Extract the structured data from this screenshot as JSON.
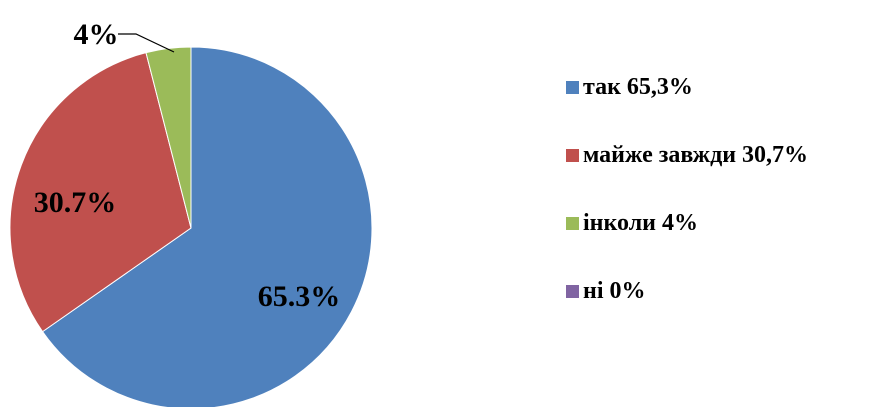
{
  "chart_data": {
    "type": "pie",
    "title": "",
    "categories": [
      "так",
      "майже завжди",
      "інколи",
      "ні"
    ],
    "values": [
      65.3,
      30.7,
      4,
      0
    ],
    "unit": "%",
    "colors": [
      "#4F81BD",
      "#C0504D",
      "#9BBB59",
      "#8064A2"
    ],
    "data_labels": [
      "65.3%",
      "30.7%",
      "4%",
      ""
    ],
    "legend": {
      "position": "right",
      "entries": [
        "так 65,3%",
        "майже завжди 30,7%",
        "інколи 4%",
        "ні 0%"
      ]
    }
  }
}
